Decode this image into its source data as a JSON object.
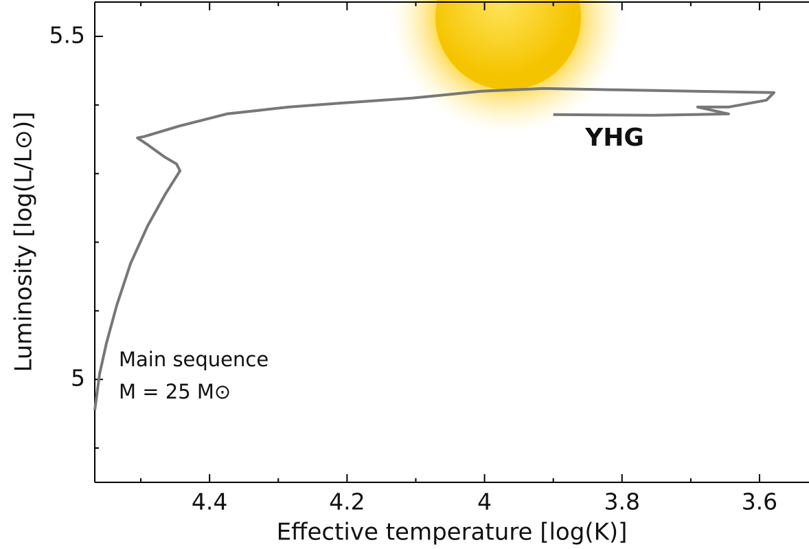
{
  "chart_data": {
    "type": "line",
    "xlabel": "Effective temperature [log(K)]",
    "ylabel": "Luminosity [log(L/L⊙)]",
    "annotations": [
      "Main sequence",
      "M = 25 M⊙",
      "YHG"
    ],
    "x": [
      4.567,
      4.56,
      4.55,
      4.535,
      4.515,
      4.49,
      4.465,
      4.443,
      4.448,
      4.465,
      4.49,
      4.505,
      4.495,
      4.445,
      4.375,
      4.285,
      4.205,
      4.105,
      4.005,
      3.915,
      3.805,
      3.579,
      3.59,
      3.645,
      3.69,
      3.645,
      3.755,
      3.9
    ],
    "values": [
      4.955,
      5.008,
      5.053,
      5.108,
      5.169,
      5.224,
      5.269,
      5.304,
      5.314,
      5.324,
      5.342,
      5.352,
      5.354,
      5.369,
      5.387,
      5.397,
      5.403,
      5.41,
      5.42,
      5.424,
      5.422,
      5.418,
      5.407,
      5.397,
      5.397,
      5.387,
      5.385,
      5.386
    ],
    "color": "#777777",
    "annotation_color": "#f0c030",
    "xlim": [
      4.567,
      3.528
    ],
    "ylim": [
      4.85,
      5.55
    ],
    "xticks": [
      4.4,
      4.2,
      4.0,
      3.8,
      3.6
    ],
    "yticks": [
      5.5,
      5.0
    ],
    "xminorticks": [
      4.5,
      4.3,
      4.1,
      3.9,
      3.7
    ],
    "yminorticks": [
      5.4,
      5.3,
      5.2,
      5.1,
      4.9
    ]
  }
}
